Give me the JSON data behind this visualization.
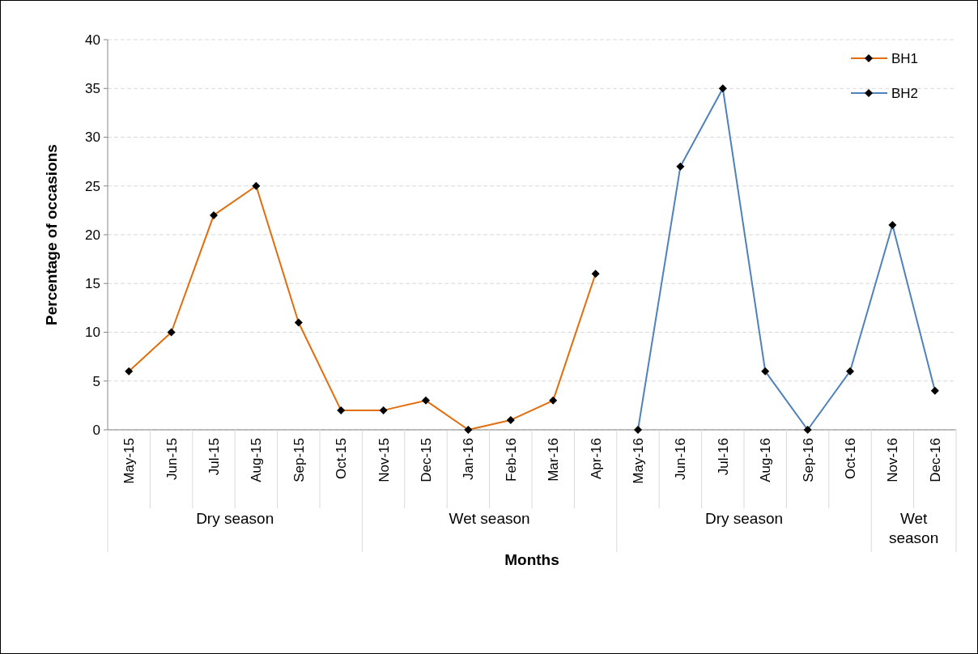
{
  "chart_data": {
    "type": "line",
    "xlabel": "Months",
    "ylabel": "Percentage of occasions",
    "categories": [
      "May-15",
      "Jun-15",
      "Jul-15",
      "Aug-15",
      "Sep-15",
      "Oct-15",
      "Nov-15",
      "Dec-15",
      "Jan-16",
      "Feb-16",
      "Mar-16",
      "Apr-16",
      "May-16",
      "Jun-16",
      "Jul-16",
      "Aug-16",
      "Sep-16",
      "Oct-16",
      "Nov-16",
      "Dec-16"
    ],
    "series": [
      {
        "name": "BH1",
        "color": "#e46c0a",
        "values": [
          6,
          10,
          22,
          25,
          11,
          2,
          2,
          3,
          0,
          1,
          3,
          16,
          null,
          null,
          null,
          null,
          null,
          null,
          null,
          null
        ]
      },
      {
        "name": "BH2",
        "color": "#4f81bd",
        "values": [
          null,
          null,
          null,
          null,
          null,
          null,
          null,
          null,
          null,
          null,
          null,
          null,
          0,
          27,
          35,
          6,
          0,
          6,
          21,
          4
        ]
      }
    ],
    "annotations": [
      "Dry season",
      "Wet season",
      "Dry season",
      "Wet season"
    ],
    "ylim": [
      0,
      40
    ],
    "yticks": [
      0,
      5,
      10,
      15,
      20,
      25,
      30,
      35,
      40
    ],
    "grid": "y",
    "legend": "top right",
    "marker": "diamond",
    "line_style": "solid"
  }
}
